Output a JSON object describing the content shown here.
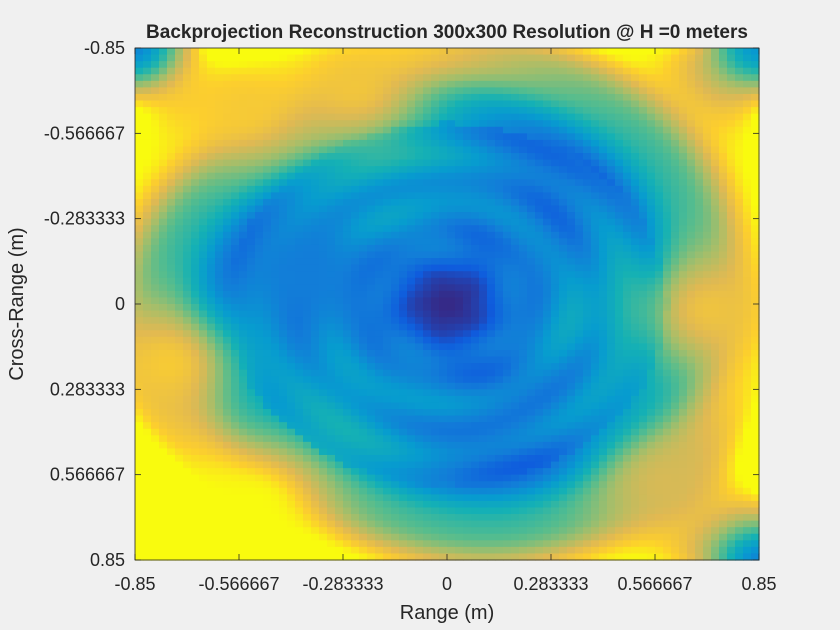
{
  "chart_data": {
    "type": "heatmap",
    "title": "Backprojection Reconstruction 300x300 Resolution @ H =0 meters",
    "xlabel": "Range (m)",
    "ylabel": "Cross-Range (m)",
    "xlim": [
      -0.85,
      0.85
    ],
    "ylim": [
      -0.85,
      0.85
    ],
    "y_direction": "reversed",
    "grid": false,
    "legend": "none",
    "colormap": "parula",
    "x_ticks": [
      {
        "value": -0.85,
        "label": "-0.85"
      },
      {
        "value": -0.566667,
        "label": "-0.566667"
      },
      {
        "value": -0.283333,
        "label": "-0.283333"
      },
      {
        "value": 0,
        "label": "0"
      },
      {
        "value": 0.283333,
        "label": "0.283333"
      },
      {
        "value": 0.566667,
        "label": "0.566667"
      },
      {
        "value": 0.85,
        "label": "0.85"
      }
    ],
    "y_ticks": [
      {
        "value": -0.85,
        "label": "-0.85"
      },
      {
        "value": -0.566667,
        "label": "-0.566667"
      },
      {
        "value": -0.283333,
        "label": "-0.283333"
      },
      {
        "value": 0,
        "label": "0"
      },
      {
        "value": 0.283333,
        "label": "0.283333"
      },
      {
        "value": 0.566667,
        "label": "0.566667"
      },
      {
        "value": 0.85,
        "label": "0.85"
      }
    ],
    "features": [
      {
        "name": "central minimum",
        "x": 0.0,
        "y": 0.0,
        "level": 0.0
      },
      {
        "name": "left low",
        "x": -0.4,
        "y": -0.1,
        "level": 0.2
      },
      {
        "name": "top-left corner low",
        "x": -0.85,
        "y": -0.85,
        "level": 0.22
      },
      {
        "name": "bottom-right corner low",
        "x": 0.85,
        "y": 0.85,
        "level": 0.22
      },
      {
        "name": "top-right corner low",
        "x": 0.85,
        "y": -0.85,
        "level": 0.3
      },
      {
        "name": "bottom-left peak",
        "x": -0.52,
        "y": 0.66,
        "level": 1.0
      },
      {
        "name": "top-left peak",
        "x": -0.55,
        "y": -0.65,
        "level": 0.9
      },
      {
        "name": "top-center peak",
        "x": -0.25,
        "y": -0.72,
        "level": 0.88
      },
      {
        "name": "right peak",
        "x": 0.72,
        "y": 0.02,
        "level": 0.87
      },
      {
        "name": "left peak",
        "x": -0.76,
        "y": 0.2,
        "level": 0.9
      },
      {
        "name": "bottom-right peak",
        "x": 0.6,
        "y": 0.6,
        "level": 0.8
      }
    ]
  }
}
